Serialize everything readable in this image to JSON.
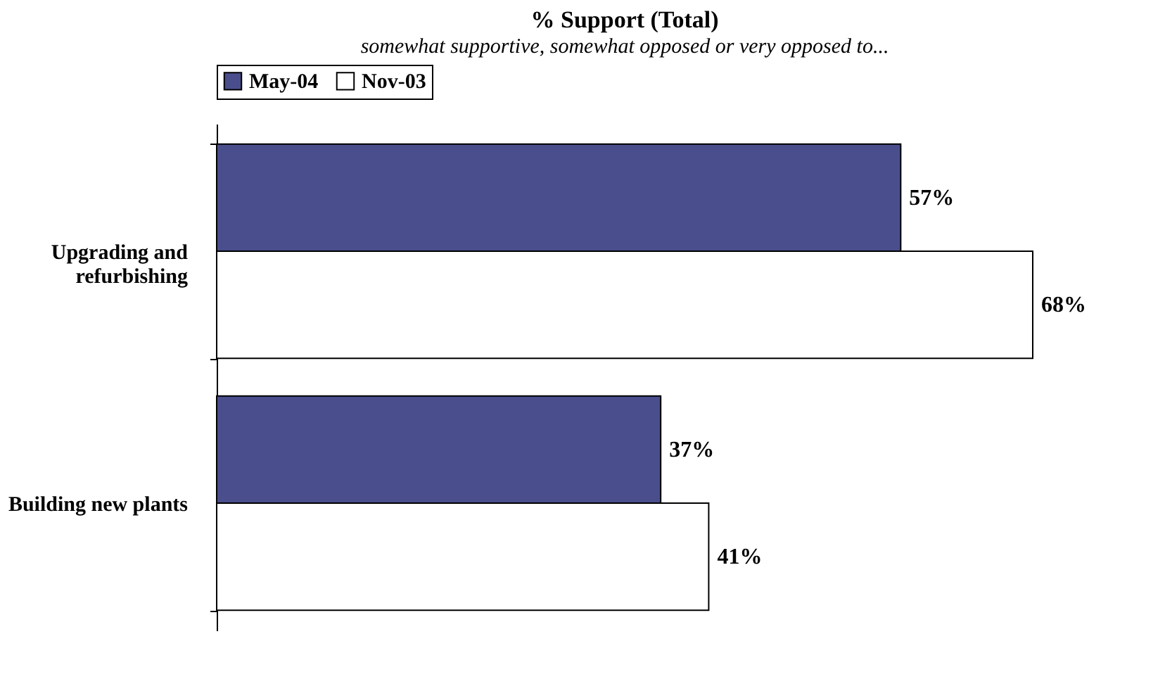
{
  "chart_data": {
    "type": "bar",
    "orientation": "horizontal",
    "title": "% Support (Total)",
    "subtitle": "somewhat supportive, somewhat opposed or very opposed to...",
    "categories": [
      "Upgrading and refurbishing",
      "Building new plants"
    ],
    "series": [
      {
        "name": "May-04",
        "color": "#4a4e8c",
        "values": [
          57,
          37
        ],
        "value_labels": [
          "57%",
          "37%"
        ]
      },
      {
        "name": "Nov-03",
        "color": "#ffffff",
        "values": [
          68,
          41
        ],
        "value_labels": [
          "68%",
          "41%"
        ]
      }
    ],
    "legend": "top",
    "grid": false
  }
}
